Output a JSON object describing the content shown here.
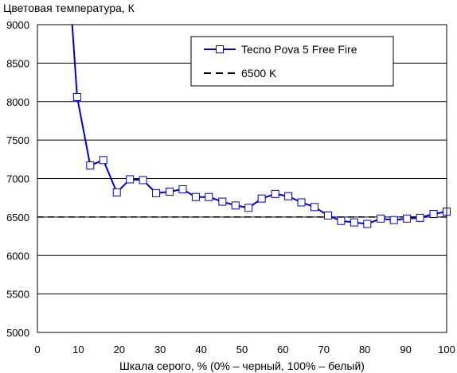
{
  "chart_data": {
    "type": "line",
    "title": "",
    "ylabel": "Цветовая температура, К",
    "xlabel": "Шкала серого, % (0% – черный, 100% – белый)",
    "xlim": [
      0,
      100
    ],
    "ylim": [
      5000,
      9000
    ],
    "xticks": [
      0,
      10,
      20,
      30,
      40,
      50,
      60,
      70,
      80,
      90,
      100
    ],
    "yticks": [
      5000,
      5500,
      6000,
      6500,
      7000,
      7500,
      8000,
      8500,
      9000
    ],
    "xtick_labels": [
      "0",
      "10",
      "20",
      "30",
      "40",
      "50",
      "60",
      "70",
      "80",
      "90",
      "100"
    ],
    "ytick_labels": [
      "5000",
      "5500",
      "6000",
      "6500",
      "7000",
      "7500",
      "8000",
      "8500",
      "9000"
    ],
    "grid": "horizontal",
    "legend_position": "top-right",
    "series": [
      {
        "name": "Tecno Pova 5 Free Fire",
        "color": "#0000cc",
        "marker": "open-square",
        "line_only_points": [
          [
            8.5,
            9000
          ]
        ],
        "x": [
          9.7,
          12.9,
          16.1,
          19.4,
          22.6,
          25.8,
          29.0,
          32.3,
          35.5,
          38.7,
          41.9,
          45.2,
          48.4,
          51.6,
          54.8,
          58.1,
          61.3,
          64.5,
          67.7,
          71.0,
          74.2,
          77.4,
          80.6,
          83.9,
          87.1,
          90.3,
          93.5,
          96.8,
          100.0
        ],
        "y": [
          8060,
          7170,
          7240,
          6820,
          6990,
          6980,
          6810,
          6830,
          6860,
          6760,
          6760,
          6700,
          6650,
          6620,
          6740,
          6800,
          6770,
          6690,
          6630,
          6520,
          6450,
          6430,
          6410,
          6480,
          6460,
          6480,
          6490,
          6540,
          6570
        ]
      },
      {
        "name": "6500 K",
        "color": "#000000",
        "style": "dashed",
        "x": [
          0,
          100
        ],
        "y": [
          6500,
          6500
        ]
      }
    ]
  }
}
